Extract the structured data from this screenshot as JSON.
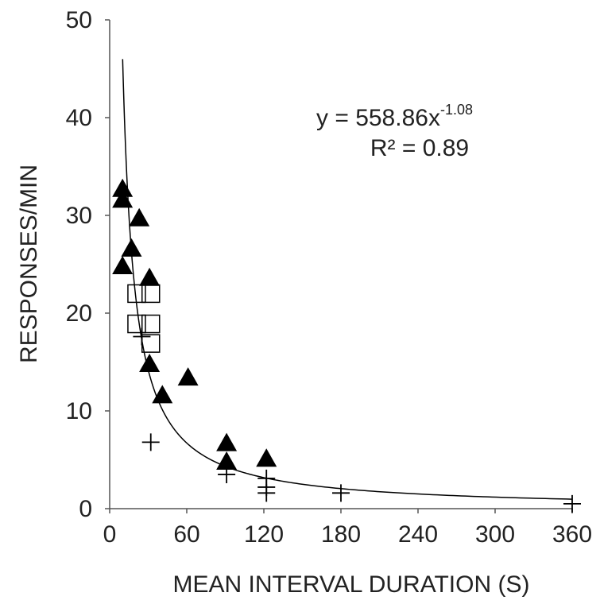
{
  "chart_data": {
    "type": "scatter",
    "x_label": "MEAN INTERVAL DURATION (S)",
    "y_label": "RESPONSES/MIN",
    "xlim": [
      0,
      360
    ],
    "xticks": [
      0,
      60,
      120,
      180,
      240,
      300,
      360
    ],
    "ylim": [
      0,
      50
    ],
    "yticks": [
      0,
      10,
      20,
      30,
      40,
      50
    ],
    "grid": false,
    "series": [
      {
        "marker": "triangle",
        "color": "#000000",
        "x": [
          10,
          10,
          10,
          17,
          23,
          31,
          31,
          41,
          61,
          91,
          91,
          122
        ],
        "values": [
          32.7,
          31.6,
          24.8,
          26.6,
          29.7,
          23.6,
          14.8,
          11.6,
          13.4,
          6.7,
          4.8,
          5.1
        ]
      },
      {
        "marker": "square",
        "color": "#000000",
        "x": [
          21,
          21,
          32,
          32,
          32
        ],
        "values": [
          22,
          18.9,
          22,
          18.9,
          16.9
        ]
      },
      {
        "marker": "plus",
        "color": "#000000",
        "x": [
          25,
          32,
          91,
          122,
          122,
          122,
          180,
          360
        ],
        "values": [
          17.6,
          6.8,
          3.5,
          3.1,
          2.2,
          1.6,
          1.6,
          0.5
        ]
      }
    ],
    "trendline": {
      "kind": "power",
      "coefficient": 558.86,
      "exponent": -1.08,
      "x_start": 10.1,
      "x_end": 360,
      "color": "#000000"
    },
    "annotation": {
      "equation": "y = 558.86x",
      "exponent_text": "-1.08",
      "r_squared": "R² = 0.89"
    }
  }
}
